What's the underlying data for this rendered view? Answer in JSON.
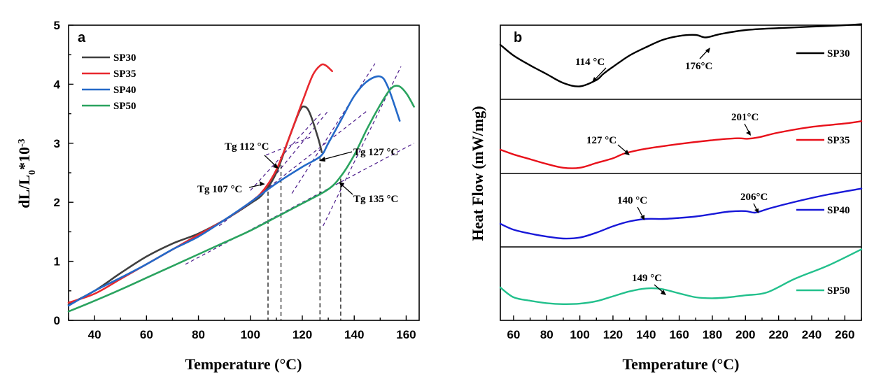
{
  "chart_data": [
    {
      "type": "line",
      "panel_label": "a",
      "xlabel": "Temperature (°C)",
      "ylabel": "dL/L0*10-3",
      "xlim": [
        30,
        165
      ],
      "ylim": [
        0,
        5
      ],
      "xticks": [
        40,
        60,
        80,
        100,
        120,
        140,
        160
      ],
      "yticks": [
        0,
        1,
        2,
        3,
        4,
        5
      ],
      "series": [
        {
          "name": "SP30",
          "color": "#404040",
          "x": [
            30,
            40,
            50,
            60,
            70,
            80,
            90,
            100,
            105,
            110,
            115,
            119,
            121,
            123,
            126,
            127.5
          ],
          "y": [
            0.27,
            0.5,
            0.8,
            1.08,
            1.3,
            1.47,
            1.7,
            1.98,
            2.15,
            2.5,
            3.1,
            3.55,
            3.62,
            3.5,
            3.1,
            2.85
          ]
        },
        {
          "name": "SP35",
          "color": "#e8282e",
          "x": [
            30,
            40,
            50,
            60,
            70,
            80,
            90,
            100,
            105,
            110,
            115,
            120,
            124,
            127,
            129,
            131.5
          ],
          "y": [
            0.3,
            0.45,
            0.7,
            0.95,
            1.2,
            1.45,
            1.7,
            2.0,
            2.2,
            2.55,
            3.1,
            3.7,
            4.15,
            4.32,
            4.32,
            4.22
          ]
        },
        {
          "name": "SP40",
          "color": "#2469c8",
          "x": [
            30,
            40,
            50,
            60,
            70,
            80,
            90,
            100,
            110,
            120,
            127,
            130,
            135,
            140,
            145,
            150,
            153,
            157.5
          ],
          "y": [
            0.25,
            0.5,
            0.72,
            0.95,
            1.2,
            1.42,
            1.7,
            2.0,
            2.32,
            2.6,
            2.78,
            3.0,
            3.4,
            3.8,
            4.05,
            4.13,
            3.95,
            3.38
          ]
        },
        {
          "name": "SP50",
          "color": "#2aa35f",
          "x": [
            30,
            40,
            50,
            60,
            70,
            80,
            90,
            100,
            110,
            120,
            130,
            135,
            140,
            145,
            150,
            154,
            157,
            160,
            163
          ],
          "y": [
            0.15,
            0.33,
            0.52,
            0.72,
            0.92,
            1.12,
            1.32,
            1.52,
            1.75,
            1.98,
            2.22,
            2.45,
            2.8,
            3.25,
            3.65,
            3.92,
            3.97,
            3.85,
            3.62
          ]
        }
      ],
      "annotations": [
        {
          "text": "Tg 107 °C",
          "tg": 107
        },
        {
          "text": "Tg 112 °C",
          "tg": 112
        },
        {
          "text": "Tg 127 °C",
          "tg": 127
        },
        {
          "text": "Tg 135 °C",
          "tg": 135
        }
      ]
    },
    {
      "type": "line",
      "panel_label": "b",
      "xlabel": "Temperature (°C)",
      "ylabel": "Heat Flow (mW/mg)",
      "xlim": [
        52,
        270
      ],
      "xticks": [
        60,
        80,
        100,
        120,
        140,
        160,
        180,
        200,
        220,
        240,
        260
      ],
      "series": [
        {
          "name": "SP30",
          "color": "#000000",
          "x": [
            52,
            60,
            70,
            80,
            90,
            100,
            110,
            114,
            120,
            130,
            140,
            150,
            160,
            170,
            176,
            185,
            200,
            220,
            240,
            260,
            270
          ],
          "y": [
            0.0,
            -0.22,
            -0.42,
            -0.6,
            -0.78,
            -0.85,
            -0.72,
            -0.6,
            -0.45,
            -0.22,
            -0.05,
            0.1,
            0.18,
            0.2,
            0.15,
            0.22,
            0.3,
            0.34,
            0.37,
            0.4,
            0.42
          ]
        },
        {
          "name": "SP35",
          "color": "#e8101a",
          "x": [
            52,
            60,
            70,
            80,
            90,
            100,
            110,
            120,
            127,
            140,
            160,
            180,
            195,
            201,
            208,
            220,
            240,
            260,
            270
          ],
          "y": [
            0.0,
            -0.1,
            -0.2,
            -0.3,
            -0.38,
            -0.38,
            -0.28,
            -0.18,
            -0.08,
            0.02,
            0.12,
            0.2,
            0.24,
            0.23,
            0.26,
            0.36,
            0.48,
            0.55,
            0.6
          ]
        },
        {
          "name": "SP40",
          "color": "#1818d8",
          "x": [
            52,
            60,
            70,
            80,
            90,
            100,
            110,
            120,
            130,
            140,
            150,
            160,
            170,
            180,
            190,
            200,
            206,
            215,
            230,
            250,
            270
          ],
          "y": [
            0.0,
            -0.12,
            -0.2,
            -0.26,
            -0.3,
            -0.28,
            -0.18,
            -0.05,
            0.05,
            0.1,
            0.1,
            0.12,
            0.15,
            0.2,
            0.25,
            0.26,
            0.23,
            0.32,
            0.45,
            0.6,
            0.72
          ]
        },
        {
          "name": "SP50",
          "color": "#22c08c",
          "x": [
            52,
            60,
            70,
            80,
            90,
            100,
            110,
            120,
            130,
            140,
            149,
            160,
            170,
            180,
            190,
            200,
            213,
            230,
            250,
            270
          ],
          "y": [
            0.0,
            -0.2,
            -0.27,
            -0.32,
            -0.34,
            -0.33,
            -0.28,
            -0.18,
            -0.08,
            -0.02,
            -0.03,
            -0.12,
            -0.2,
            -0.22,
            -0.2,
            -0.16,
            -0.1,
            0.18,
            0.45,
            0.78
          ]
        }
      ],
      "annotations": [
        {
          "text": "114 °C",
          "series": "SP30"
        },
        {
          "text": "176°C",
          "series": "SP30"
        },
        {
          "text": "127 °C",
          "series": "SP35"
        },
        {
          "text": "201°C",
          "series": "SP35"
        },
        {
          "text": "140 °C",
          "series": "SP40"
        },
        {
          "text": "206°C",
          "series": "SP40"
        },
        {
          "text": "149 °C",
          "series": "SP50"
        }
      ]
    }
  ]
}
